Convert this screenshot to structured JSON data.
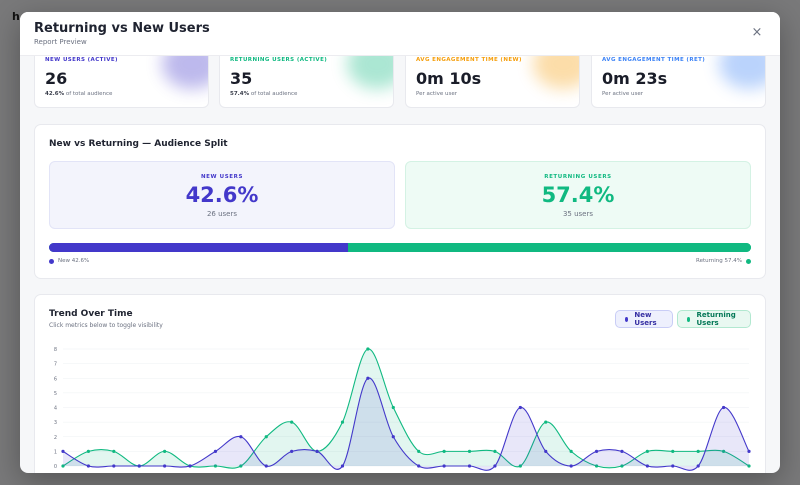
{
  "background": {
    "title": "h"
  },
  "modal": {
    "title": "Returning vs New Users",
    "subtitle": "Report Preview",
    "close_icon": "×"
  },
  "kpis": [
    {
      "label": "NEW USERS (ACTIVE)",
      "value": "26",
      "sub_strong": "42.6%",
      "sub_text": " of total audience",
      "color": "#4338ca"
    },
    {
      "label": "RETURNING USERS (ACTIVE)",
      "value": "35",
      "sub_strong": "57.4%",
      "sub_text": " of total audience",
      "color": "#10b981"
    },
    {
      "label": "AVG ENGAGEMENT TIME (NEW)",
      "value": "0m 10s",
      "sub_strong": "",
      "sub_text": "Per active user",
      "color": "#f59e0b"
    },
    {
      "label": "AVG ENGAGEMENT TIME (RET)",
      "value": "0m 23s",
      "sub_strong": "",
      "sub_text": "Per active user",
      "color": "#3b82f6"
    }
  ],
  "split": {
    "title": "New vs Returning — Audience Split",
    "new": {
      "label": "NEW USERS",
      "value": "42.6%",
      "count": "26 users",
      "share": 0.426
    },
    "returning": {
      "label": "RETURNING USERS",
      "value": "57.4%",
      "count": "35 users",
      "share": 0.574
    },
    "legend_new": "New 42.6%",
    "legend_returning": "Returning 57.4%"
  },
  "trend": {
    "title": "Trend Over Time",
    "subtitle": "Click metrics below to toggle visibility",
    "toggle_new": "New Users",
    "toggle_returning": "Returning Users"
  },
  "colors": {
    "new": "#4338ca",
    "returning": "#10b981"
  },
  "chart_data": {
    "type": "area",
    "title": "Trend Over Time",
    "ylim": [
      0,
      8
    ],
    "yticks": [
      "0",
      "1",
      "2",
      "3",
      "4",
      "5",
      "6",
      "7",
      "8"
    ],
    "grid": true,
    "series": [
      {
        "name": "New Users",
        "values": [
          1,
          0,
          0,
          0,
          0,
          0,
          1,
          2,
          0,
          1,
          1,
          0,
          6,
          2,
          0,
          0,
          0,
          0,
          4,
          1,
          0,
          1,
          1,
          0,
          0,
          0,
          4,
          1
        ]
      },
      {
        "name": "Returning Users",
        "values": [
          0,
          1,
          1,
          0,
          1,
          0,
          0,
          0,
          2,
          3,
          1,
          3,
          8,
          4,
          1,
          1,
          1,
          1,
          0,
          3,
          1,
          0,
          0,
          1,
          1,
          1,
          1,
          0
        ]
      }
    ]
  }
}
